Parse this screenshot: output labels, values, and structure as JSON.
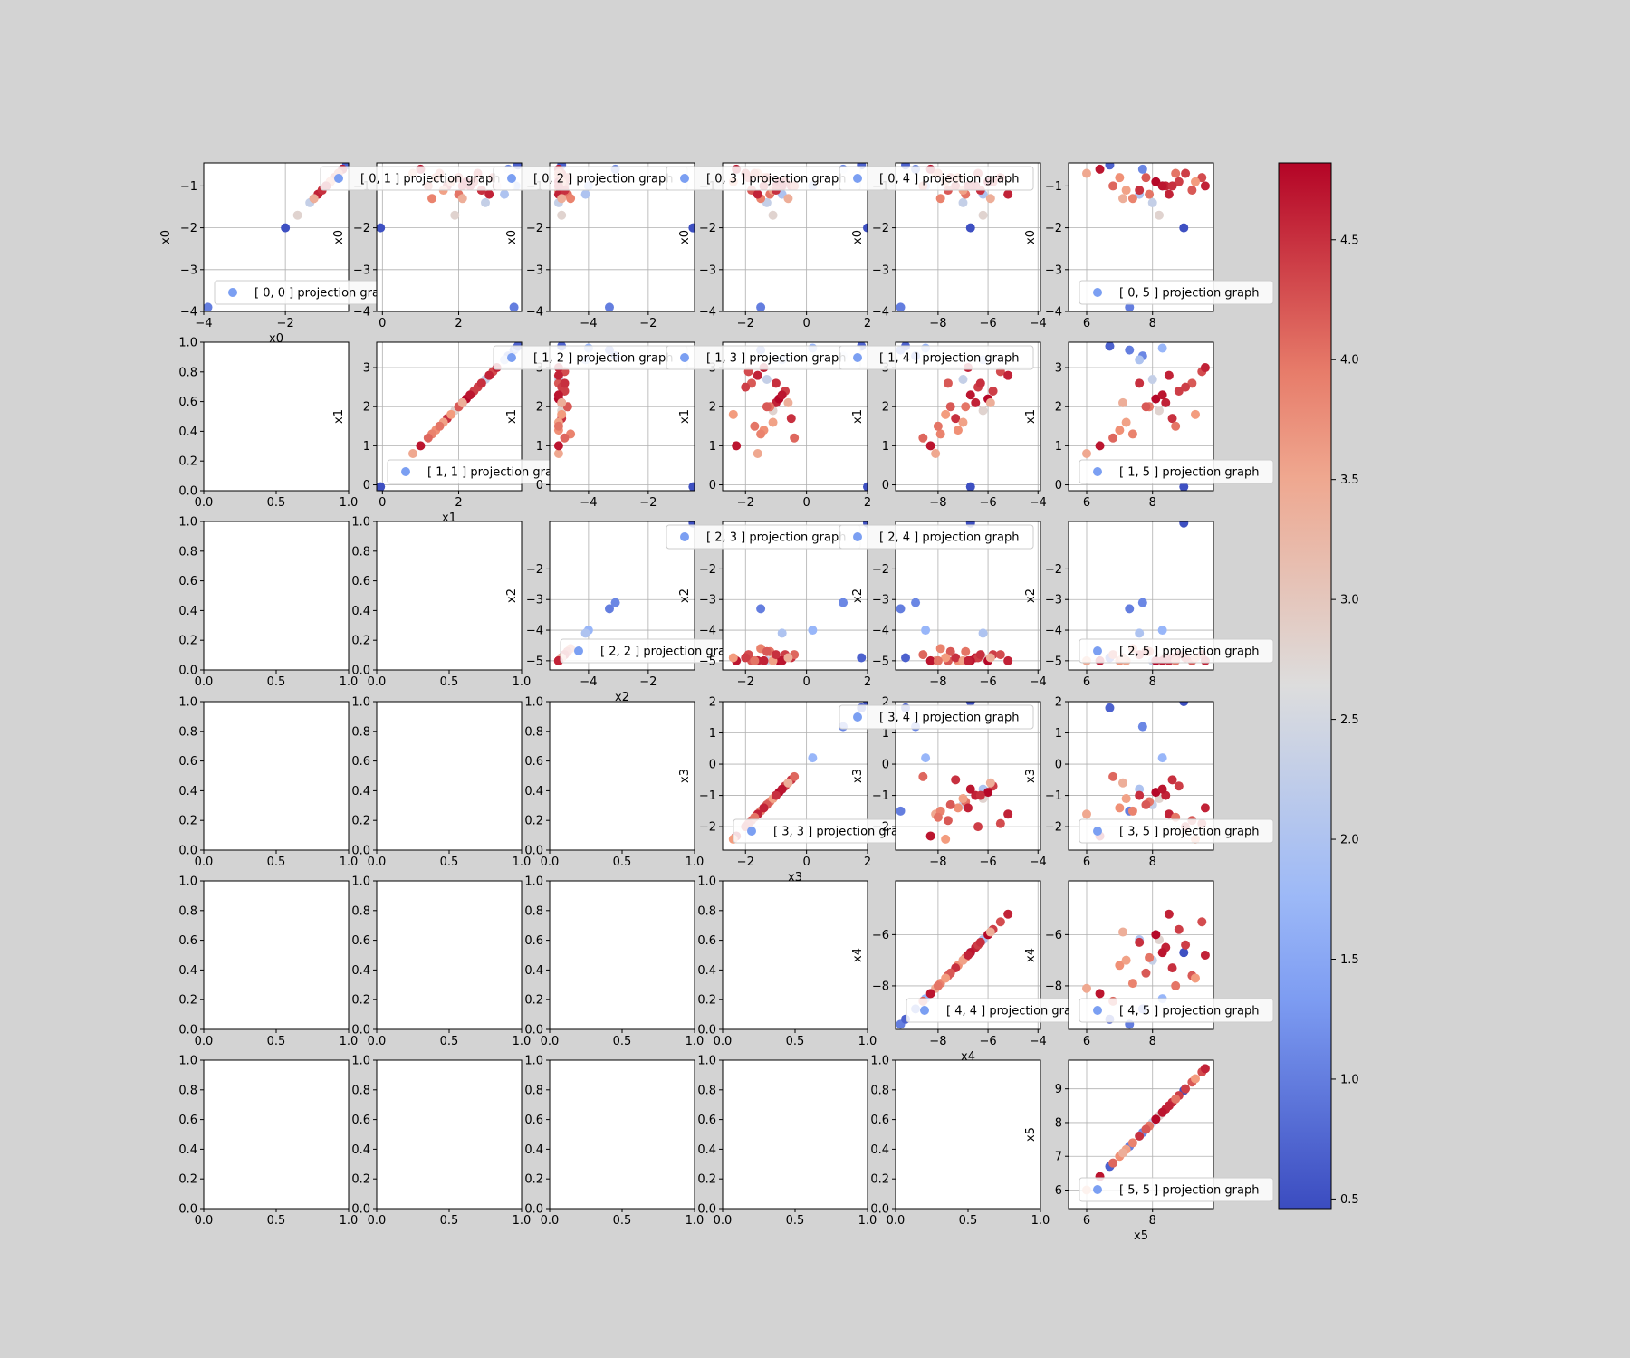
{
  "figure": {
    "background": "#d3d3d3",
    "legend_suffix": "projection graph",
    "legend_marker_color": "#7b9ff2"
  },
  "colorbar": {
    "cmap": "coolwarm",
    "vmin": 0.46,
    "vmax": 4.82,
    "ticks": [
      "0.5",
      "1.0",
      "1.5",
      "2.0",
      "2.5",
      "3.0",
      "3.5",
      "4.0",
      "4.5"
    ],
    "tick_values": [
      0.5,
      1.0,
      1.5,
      2.0,
      2.5,
      3.0,
      3.5,
      4.0,
      4.5
    ]
  },
  "dims": [
    {
      "name": "x0",
      "range": [
        -4.0,
        -0.45
      ],
      "ticks": [
        -4,
        -2
      ],
      "yticks": [
        -4,
        -3,
        -2,
        -1
      ]
    },
    {
      "name": "x1",
      "range": [
        -0.15,
        3.65
      ],
      "ticks": [
        0,
        2
      ],
      "yticks": [
        0,
        1,
        2,
        3
      ]
    },
    {
      "name": "x2",
      "range": [
        -5.3,
        -0.45
      ],
      "ticks": [
        -4,
        -2
      ],
      "yticks": [
        -5,
        -4,
        -3,
        -2
      ]
    },
    {
      "name": "x3",
      "range": [
        -2.75,
        2.0
      ],
      "ticks": [
        -2,
        0,
        2
      ],
      "yticks": [
        -2,
        -1,
        0,
        1,
        2
      ]
    },
    {
      "name": "x4",
      "range": [
        -9.7,
        -3.9
      ],
      "ticks": [
        -8,
        -6,
        -4
      ],
      "yticks": [
        -8,
        -6
      ]
    },
    {
      "name": "x5",
      "range": [
        5.45,
        9.85
      ],
      "ticks": [
        6,
        8
      ],
      "yticks": [
        6,
        7,
        8,
        9
      ]
    }
  ],
  "empty_axes": {
    "xticks": [
      "0.0",
      "0.5",
      "1.0"
    ],
    "yticks": [
      "0.0",
      "0.2",
      "0.4",
      "0.6",
      "0.8",
      "1.0"
    ]
  },
  "chart_data": {
    "type": "scatter",
    "layout": "upper-triangular pairwise projection grid (6x6)",
    "colormap": "coolwarm",
    "legend_entries": [
      "[ 0, 0 ] projection graph",
      "[ 0, 1 ] projection graph",
      "[ 0, 2 ] projection graph",
      "[ 0, 3 ] projection graph",
      "[ 0, 4 ] projection graph",
      "[ 0, 5 ] projection graph",
      "[ 1, 1 ] projection graph",
      "[ 1, 2 ] projection graph",
      "[ 1, 3 ] projection graph",
      "[ 1, 4 ] projection graph",
      "[ 1, 5 ] projection graph",
      "[ 2, 2 ] projection graph",
      "[ 2, 3 ] projection graph",
      "[ 2, 4 ] projection graph",
      "[ 2, 5 ] projection graph",
      "[ 3, 3 ] projection graph",
      "[ 3, 4 ] projection graph",
      "[ 3, 5 ] projection graph",
      "[ 4, 4 ] projection graph",
      "[ 4, 5 ] projection graph",
      "[ 5, 5 ] projection graph"
    ],
    "points": [
      {
        "x0": -3.9,
        "x1": 3.45,
        "x2": -3.3,
        "x3": -1.5,
        "x4": -9.5,
        "x5": 7.3,
        "c": 1.0
      },
      {
        "x0": -2.0,
        "x1": -0.05,
        "x2": -0.5,
        "x3": 2.0,
        "x4": -6.7,
        "x5": 8.95,
        "c": 0.5
      },
      {
        "x0": -1.0,
        "x1": 3.5,
        "x2": -4.0,
        "x3": 0.2,
        "x4": -8.5,
        "x5": 8.3,
        "c": 1.7
      },
      {
        "x0": -0.6,
        "x1": 3.3,
        "x2": -3.1,
        "x3": 1.2,
        "x4": -8.9,
        "x5": 7.7,
        "c": 1.1
      },
      {
        "x0": -0.5,
        "x1": 3.55,
        "x2": -4.9,
        "x3": 1.8,
        "x4": -9.3,
        "x5": 6.7,
        "c": 0.7
      },
      {
        "x0": -1.7,
        "x1": 1.9,
        "x2": -4.9,
        "x3": -1.1,
        "x4": -6.2,
        "x5": 8.2,
        "c": 2.8
      },
      {
        "x0": -1.2,
        "x1": 3.2,
        "x2": -4.1,
        "x3": -0.8,
        "x4": -6.2,
        "x5": 7.6,
        "c": 2.0
      },
      {
        "x0": -1.4,
        "x1": 2.7,
        "x2": -5.0,
        "x3": -1.3,
        "x4": -7.0,
        "x5": 8.0,
        "c": 2.3
      },
      {
        "x0": -0.7,
        "x1": 0.8,
        "x2": -5.0,
        "x3": -1.6,
        "x4": -8.1,
        "x5": 6.0,
        "c": 3.5
      },
      {
        "x0": -0.8,
        "x1": 1.4,
        "x2": -5.0,
        "x3": -1.4,
        "x4": -7.2,
        "x5": 7.0,
        "c": 3.8
      },
      {
        "x0": -1.0,
        "x1": 2.1,
        "x2": -4.9,
        "x3": -1.0,
        "x4": -6.5,
        "x5": 8.4,
        "c": 4.6
      },
      {
        "x0": -0.9,
        "x1": 2.4,
        "x2": -4.8,
        "x3": -0.7,
        "x4": -5.8,
        "x5": 8.8,
        "c": 4.4
      },
      {
        "x0": -1.1,
        "x1": 2.6,
        "x2": -5.0,
        "x3": -1.8,
        "x4": -7.6,
        "x5": 9.2,
        "c": 4.2
      },
      {
        "x0": -0.6,
        "x1": 1.0,
        "x2": -5.0,
        "x3": -2.3,
        "x4": -8.3,
        "x5": 6.4,
        "c": 4.7
      },
      {
        "x0": -1.2,
        "x1": 2.0,
        "x2": -4.7,
        "x3": -1.2,
        "x4": -6.9,
        "x5": 7.9,
        "c": 4.0
      },
      {
        "x0": -1.0,
        "x1": 1.7,
        "x2": -4.9,
        "x3": -0.5,
        "x4": -7.3,
        "x5": 8.6,
        "c": 4.5
      },
      {
        "x0": -0.8,
        "x1": 2.9,
        "x2": -4.8,
        "x3": -1.9,
        "x4": -5.5,
        "x5": 9.5,
        "c": 4.3
      },
      {
        "x0": -1.3,
        "x1": 1.3,
        "x2": -4.6,
        "x3": -1.5,
        "x4": -7.9,
        "x5": 7.4,
        "c": 3.9
      },
      {
        "x0": -0.9,
        "x1": 2.2,
        "x2": -5.0,
        "x3": -0.9,
        "x4": -6.0,
        "x5": 8.1,
        "c": 4.8
      },
      {
        "x0": -1.1,
        "x1": 1.6,
        "x2": -5.0,
        "x3": -1.1,
        "x4": -7.0,
        "x5": 7.2,
        "c": 3.6
      },
      {
        "x0": -0.7,
        "x1": 2.5,
        "x2": -4.9,
        "x3": -2.0,
        "x4": -6.4,
        "x5": 9.0,
        "c": 4.4
      },
      {
        "x0": -1.0,
        "x1": 1.2,
        "x2": -4.8,
        "x3": -0.4,
        "x4": -8.6,
        "x5": 6.8,
        "c": 4.1
      },
      {
        "x0": -1.2,
        "x1": 2.8,
        "x2": -5.0,
        "x3": -1.6,
        "x4": -5.2,
        "x5": 8.5,
        "c": 4.6
      },
      {
        "x0": -0.8,
        "x1": 2.0,
        "x2": -4.7,
        "x3": -1.3,
        "x4": -7.5,
        "x5": 7.8,
        "c": 4.2
      },
      {
        "x0": -1.0,
        "x1": 2.3,
        "x2": -5.0,
        "x3": -0.8,
        "x4": -6.7,
        "x5": 8.3,
        "c": 4.7
      },
      {
        "x0": -0.9,
        "x1": 1.8,
        "x2": -4.9,
        "x3": -2.4,
        "x4": -7.7,
        "x5": 9.3,
        "c": 3.7
      },
      {
        "x0": -1.1,
        "x1": 2.6,
        "x2": -4.8,
        "x3": -1.0,
        "x4": -6.3,
        "x5": 7.6,
        "c": 4.5
      },
      {
        "x0": -0.7,
        "x1": 1.5,
        "x2": -5.0,
        "x3": -1.7,
        "x4": -8.0,
        "x5": 8.7,
        "c": 4.0
      },
      {
        "x0": -1.3,
        "x1": 2.1,
        "x2": -4.9,
        "x3": -0.6,
        "x4": -5.9,
        "x5": 7.1,
        "c": 3.4
      },
      {
        "x0": -1.0,
        "x1": 3.0,
        "x2": -5.0,
        "x3": -1.4,
        "x4": -6.8,
        "x5": 9.6,
        "c": 4.6
      }
    ]
  }
}
